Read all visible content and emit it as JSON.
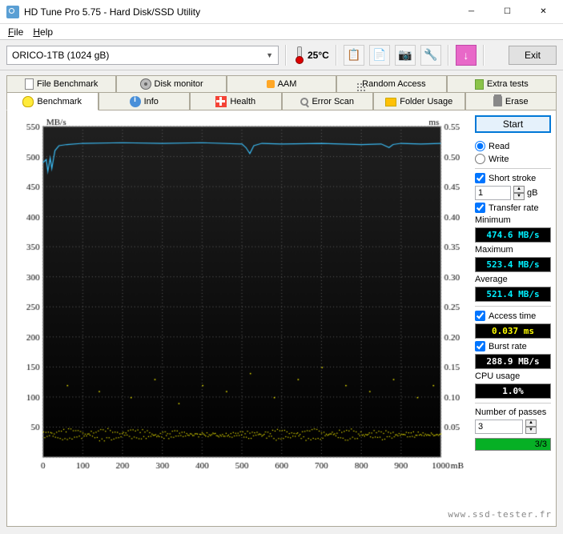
{
  "window": {
    "title": "HD Tune Pro 5.75 - Hard Disk/SSD Utility"
  },
  "menu": {
    "file": "File",
    "help": "Help"
  },
  "toolbar": {
    "drive": "ORICO-1TB (1024 gB)",
    "temp": "25°C",
    "exit": "Exit"
  },
  "tabs_row1": [
    {
      "label": "File Benchmark",
      "icon": "file"
    },
    {
      "label": "Disk monitor",
      "icon": "disk"
    },
    {
      "label": "AAM",
      "icon": "speaker"
    },
    {
      "label": "Random Access",
      "icon": "random"
    },
    {
      "label": "Extra tests",
      "icon": "extra"
    }
  ],
  "tabs_row2": [
    {
      "label": "Benchmark",
      "icon": "bulb",
      "active": true
    },
    {
      "label": "Info",
      "icon": "info"
    },
    {
      "label": "Health",
      "icon": "health"
    },
    {
      "label": "Error Scan",
      "icon": "scan"
    },
    {
      "label": "Folder Usage",
      "icon": "folder"
    },
    {
      "label": "Erase",
      "icon": "erase"
    }
  ],
  "sidebar": {
    "start": "Start",
    "read": "Read",
    "write": "Write",
    "short_stroke": "Short stroke",
    "short_stroke_val": "1",
    "short_stroke_unit": "gB",
    "transfer": "Transfer rate",
    "min_label": "Minimum",
    "min_val": "474.6 MB/s",
    "max_label": "Maximum",
    "max_val": "523.4 MB/s",
    "avg_label": "Average",
    "avg_val": "521.4 MB/s",
    "access_label": "Access time",
    "access_val": "0.037 ms",
    "burst_label": "Burst rate",
    "burst_val": "288.9 MB/s",
    "cpu_label": "CPU usage",
    "cpu_val": "1.0%",
    "passes_label": "Number of passes",
    "passes_val": "3",
    "passes_done": "3/3"
  },
  "chart": {
    "ylabel_left": "MB/s",
    "ylabel_right": "ms",
    "xlabel": "mB",
    "y_left_max": 550,
    "y_left_min": 0,
    "y_left_step": 50,
    "y_right_max": 0.55,
    "y_right_min": 0,
    "y_right_step": 0.05,
    "x_max": 1000,
    "x_min": 0,
    "x_step": 100,
    "bg_top": "#202020",
    "bg_bottom": "#000000",
    "grid_color": "#5a5a5a",
    "transfer_color": "#3ab8f0",
    "access_color": "#f0e800",
    "transfer_line": [
      [
        0,
        490
      ],
      [
        8,
        495
      ],
      [
        12,
        475
      ],
      [
        18,
        498
      ],
      [
        22,
        480
      ],
      [
        30,
        510
      ],
      [
        40,
        518
      ],
      [
        60,
        520
      ],
      [
        100,
        522
      ],
      [
        200,
        523
      ],
      [
        300,
        522
      ],
      [
        400,
        523
      ],
      [
        500,
        521
      ],
      [
        510,
        515
      ],
      [
        520,
        505
      ],
      [
        530,
        518
      ],
      [
        550,
        522
      ],
      [
        600,
        521
      ],
      [
        700,
        522
      ],
      [
        800,
        520
      ],
      [
        850,
        521
      ],
      [
        870,
        515
      ],
      [
        880,
        520
      ],
      [
        900,
        522
      ],
      [
        950,
        521
      ],
      [
        1000,
        522
      ]
    ],
    "access_baseline": 0.035,
    "access_spikes": [
      [
        60,
        0.12
      ],
      [
        140,
        0.11
      ],
      [
        220,
        0.1
      ],
      [
        280,
        0.13
      ],
      [
        340,
        0.09
      ],
      [
        400,
        0.12
      ],
      [
        460,
        0.11
      ],
      [
        520,
        0.14
      ],
      [
        580,
        0.1
      ],
      [
        640,
        0.13
      ],
      [
        700,
        0.15
      ],
      [
        760,
        0.12
      ],
      [
        820,
        0.11
      ],
      [
        880,
        0.13
      ],
      [
        940,
        0.1
      ],
      [
        980,
        0.12
      ]
    ]
  },
  "footer": "www.ssd-tester.fr"
}
